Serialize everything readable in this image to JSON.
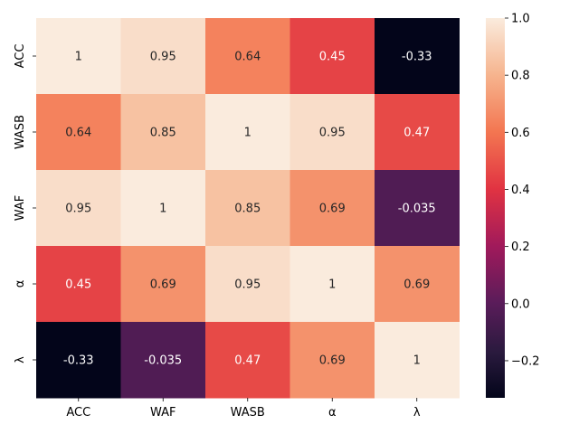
{
  "chart_data": {
    "type": "heatmap",
    "title": "",
    "xlabel": "",
    "ylabel": "",
    "x_categories": [
      "ACC",
      "WAF",
      "WASB",
      "α",
      "λ"
    ],
    "y_categories": [
      "ACC",
      "WASB",
      "WAF",
      "α",
      "λ"
    ],
    "values": [
      [
        1,
        0.95,
        0.64,
        0.45,
        -0.33
      ],
      [
        0.64,
        0.85,
        1,
        0.95,
        0.47
      ],
      [
        0.95,
        1,
        0.85,
        0.69,
        -0.035
      ],
      [
        0.45,
        0.69,
        0.95,
        1,
        0.69
      ],
      [
        -0.33,
        -0.035,
        0.47,
        0.69,
        1
      ]
    ],
    "cell_labels": [
      [
        "1",
        "0.95",
        "0.64",
        "0.45",
        "-0.33"
      ],
      [
        "0.64",
        "0.85",
        "1",
        "0.95",
        "0.47"
      ],
      [
        "0.95",
        "1",
        "0.85",
        "0.69",
        "-0.035"
      ],
      [
        "0.45",
        "0.69",
        "0.95",
        "1",
        "0.69"
      ],
      [
        "-0.33",
        "-0.035",
        "0.47",
        "0.69",
        "1"
      ]
    ],
    "colorbar": {
      "vmin": -0.33,
      "vmax": 1.0,
      "ticks": [
        -0.2,
        0.0,
        0.2,
        0.4,
        0.6,
        0.8,
        1.0
      ],
      "tick_labels": [
        "−0.2",
        "0.0",
        "0.2",
        "0.4",
        "0.6",
        "0.8",
        "1.0"
      ],
      "colormap": "rocket"
    }
  }
}
